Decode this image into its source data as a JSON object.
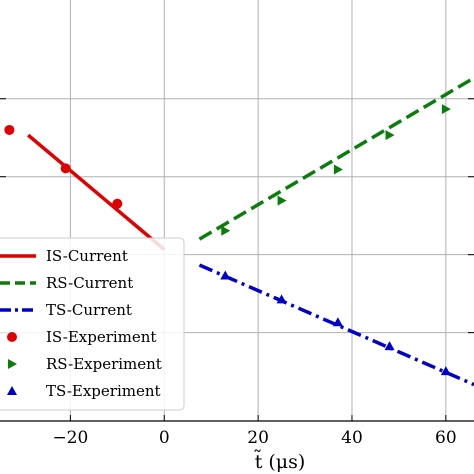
{
  "chart_data": {
    "type": "line",
    "xlabel": "t̃ (μs)",
    "ylabel": "",
    "xlim": [
      -35,
      66
    ],
    "ylim": [
      -1.85,
      2.2
    ],
    "grid": true,
    "legend_position": "lower-left",
    "x_ticks": [
      -20,
      0,
      20,
      40,
      60
    ],
    "x_tick_labels": [
      "−20",
      "0",
      "20",
      "40",
      "60"
    ],
    "y_ticks": [
      -1.0,
      -0.25,
      0.5,
      1.25
    ],
    "series": [
      {
        "name": "IS-Current",
        "style": "solid",
        "color": "#e00000",
        "x": [
          -29,
          0
        ],
        "y": [
          0.9,
          -0.2
        ]
      },
      {
        "name": "RS-Current",
        "style": "dashed",
        "color": "#0a7d0a",
        "x": [
          7.5,
          66
        ],
        "y": [
          -0.1,
          1.45
        ]
      },
      {
        "name": "TS-Current",
        "style": "dashdot",
        "color": "#0000cc",
        "x": [
          7.5,
          66
        ],
        "y": [
          -0.35,
          -1.5
        ]
      },
      {
        "name": "IS-Experiment",
        "marker": "circle",
        "color": "#e00000",
        "x": [
          -33,
          -21,
          -10
        ],
        "y": [
          0.95,
          0.58,
          0.24
        ]
      },
      {
        "name": "RS-Experiment",
        "marker": "triangle-right",
        "color": "#0a7d0a",
        "x": [
          13,
          25,
          37,
          48,
          60
        ],
        "y": [
          -0.02,
          0.27,
          0.57,
          0.9,
          1.15
        ]
      },
      {
        "name": "TS-Experiment",
        "marker": "triangle-up",
        "color": "#0000cc",
        "x": [
          13,
          25,
          37,
          48,
          60
        ],
        "y": [
          -0.45,
          -0.68,
          -0.9,
          -1.13,
          -1.37
        ]
      }
    ]
  }
}
